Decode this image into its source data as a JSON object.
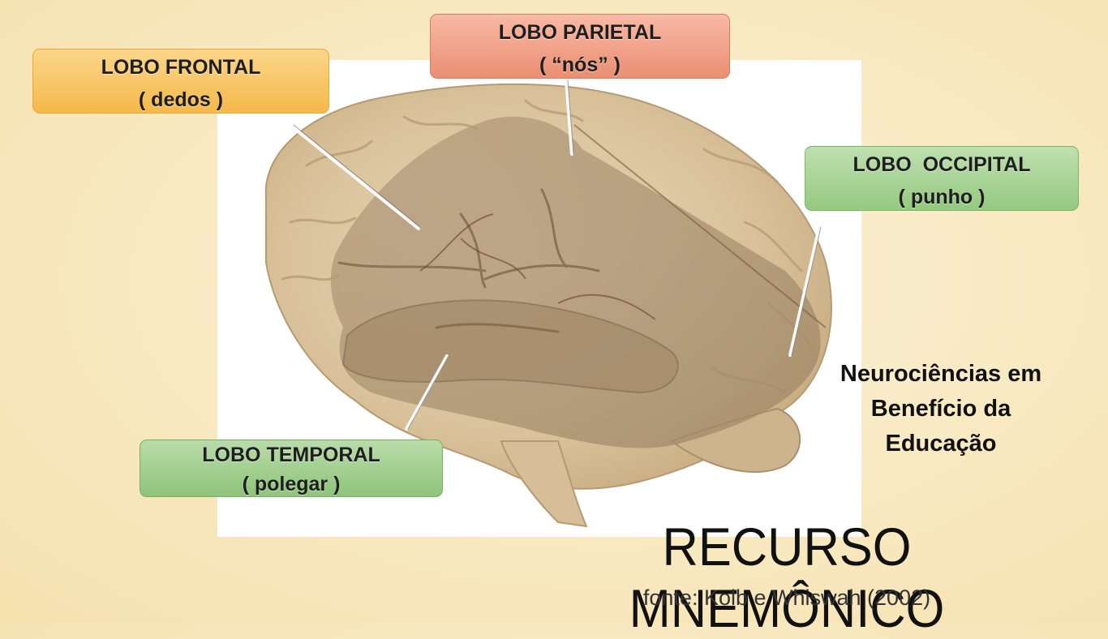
{
  "labels": {
    "frontal": {
      "name": "LOBO FRONTAL",
      "mnemonic": "( dedos )",
      "color": "#f5b84a"
    },
    "parietal": {
      "name": "LOBO PARIETAL",
      "mnemonic": "( “nós” )",
      "color": "#ea8f72"
    },
    "occipital": {
      "name": "LOBO  OCCIPITAL",
      "mnemonic": "( punho )",
      "color": "#94c97f"
    },
    "temporal": {
      "name": "LOBO TEMPORAL",
      "mnemonic": "( polegar )",
      "color": "#8ec47a"
    }
  },
  "side_note": [
    "Neurociências em",
    "Benefício da",
    "Educação"
  ],
  "title": "RECURSO MNEMÔNICO",
  "source": "fonte: Kolb e Whiswah (2002)"
}
